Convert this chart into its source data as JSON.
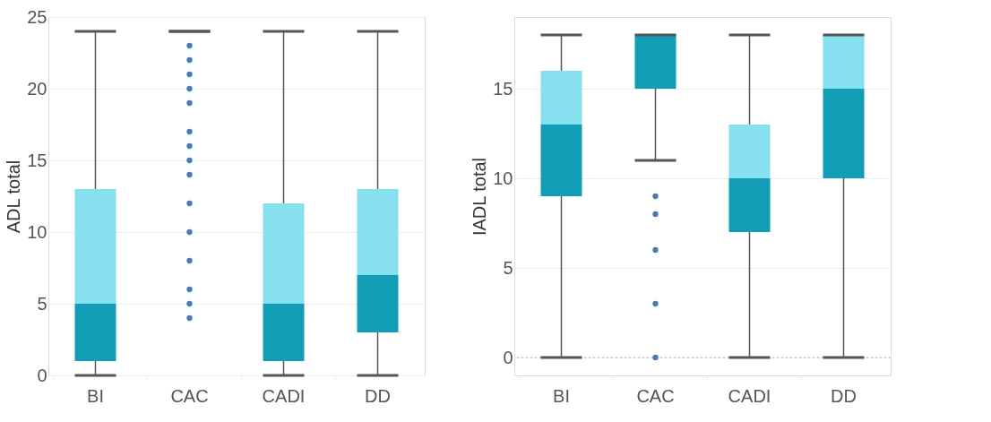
{
  "chart_data": [
    {
      "type": "box",
      "ylabel": "ADL total",
      "categories": [
        "BI",
        "CAC",
        "CADI",
        "DD"
      ],
      "colors": [
        [
          "#119db5",
          "#86e0ef"
        ],
        [
          "#119db5",
          "#86e0ef"
        ],
        [
          "#119db5",
          "#86e0ef"
        ],
        [
          "#119db5",
          "#86e0ef"
        ]
      ],
      "ylim": [
        0,
        25
      ],
      "yticks": [
        0,
        5,
        10,
        15,
        20,
        25
      ],
      "grid": "y",
      "boxes": [
        {
          "low": 0,
          "q1": 1,
          "median": 5,
          "q3": 13,
          "high": 24
        },
        {
          "low": 24,
          "q1": 24,
          "median": 24,
          "q3": 24,
          "high": 24,
          "outliers": [
            23,
            22,
            21,
            20,
            19,
            17,
            16,
            15,
            14,
            12,
            10,
            8,
            6,
            5,
            4
          ]
        },
        {
          "low": 0,
          "q1": 1,
          "median": 5,
          "q3": 12,
          "high": 24
        },
        {
          "low": 0,
          "q1": 3,
          "median": 7,
          "q3": 13,
          "high": 24
        }
      ]
    },
    {
      "type": "box",
      "ylabel": "IADL total",
      "categories": [
        "BI",
        "CAC",
        "CADI",
        "DD"
      ],
      "colors": [
        [
          "#119db5",
          "#86e0ef"
        ],
        [
          "#119db5",
          "#86e0ef"
        ],
        [
          "#119db5",
          "#86e0ef"
        ],
        [
          "#119db5",
          "#86e0ef"
        ]
      ],
      "ylim": [
        -1,
        19
      ],
      "yticks": [
        0,
        5,
        10,
        15
      ],
      "grid": "y",
      "ref_lines": [
        {
          "axis": "y",
          "value": 0,
          "line_style": "dotted",
          "color": "#aaaaaa"
        }
      ],
      "boxes": [
        {
          "low": 0,
          "q1": 9,
          "median": 13,
          "q3": 16,
          "high": 18
        },
        {
          "low": 11,
          "q1": 15,
          "median": 18,
          "q3": 18,
          "high": 18,
          "outliers": [
            9,
            8,
            6,
            3,
            0
          ]
        },
        {
          "low": 0,
          "q1": 7,
          "median": 10,
          "q3": 13,
          "high": 18
        },
        {
          "low": 0,
          "q1": 10,
          "median": 15,
          "q3": 18,
          "high": 18
        }
      ]
    }
  ]
}
